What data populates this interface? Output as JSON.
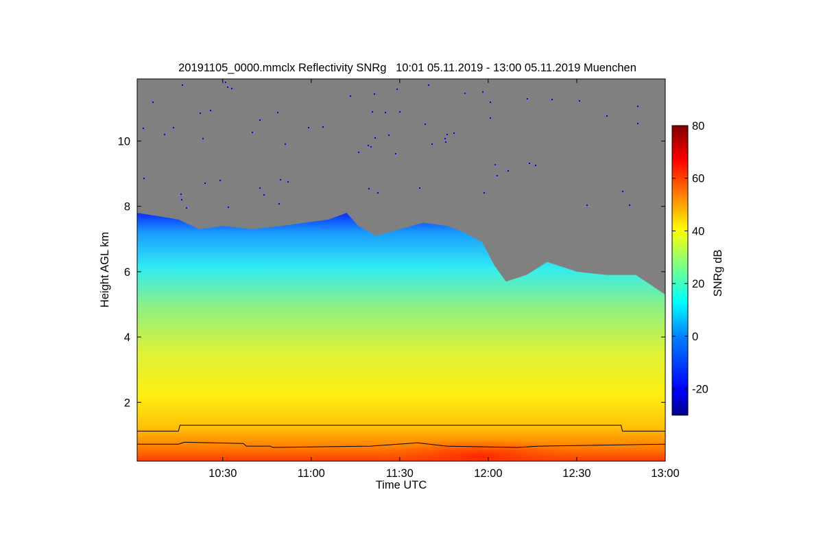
{
  "chart_data": {
    "type": "heatmap",
    "title": "20191105_0000.mmclx Reflectivity SNRg   10:01 05.11.2019 - 13:00 05.11.2019 Muenchen",
    "xlabel": "Time UTC",
    "ylabel": "Height AGL km",
    "x_ticks": [
      "10:30",
      "11:00",
      "11:30",
      "12:00",
      "12:30",
      "13:00"
    ],
    "x_tick_minutes": [
      30,
      60,
      90,
      120,
      150,
      180
    ],
    "xlim_minutes": [
      1,
      180
    ],
    "y_ticks": [
      "2",
      "4",
      "6",
      "8",
      "10"
    ],
    "y_tick_values": [
      2,
      4,
      6,
      8,
      10
    ],
    "ylim": [
      0.2,
      11.9
    ],
    "colorbar": {
      "label": "SNRg dB",
      "ticks": [
        "-20",
        "0",
        "20",
        "40",
        "60",
        "80"
      ],
      "tick_values": [
        -20,
        0,
        20,
        40,
        60,
        80
      ],
      "range": [
        -30,
        80
      ],
      "colors": [
        "#00008f",
        "#0000ff",
        "#0080ff",
        "#00ffff",
        "#80ff80",
        "#ffff00",
        "#ff8000",
        "#ff0000",
        "#800000"
      ]
    },
    "no_signal_color": "#808080",
    "cloud_top_km": [
      {
        "t": 1,
        "h": 7.8
      },
      {
        "t": 8,
        "h": 7.7
      },
      {
        "t": 15,
        "h": 7.6
      },
      {
        "t": 22,
        "h": 7.3
      },
      {
        "t": 30,
        "h": 7.4
      },
      {
        "t": 40,
        "h": 7.3
      },
      {
        "t": 50,
        "h": 7.4
      },
      {
        "t": 58,
        "h": 7.5
      },
      {
        "t": 66,
        "h": 7.6
      },
      {
        "t": 72,
        "h": 7.8
      },
      {
        "t": 76,
        "h": 7.4
      },
      {
        "t": 82,
        "h": 7.1
      },
      {
        "t": 90,
        "h": 7.3
      },
      {
        "t": 98,
        "h": 7.5
      },
      {
        "t": 106,
        "h": 7.4
      },
      {
        "t": 112,
        "h": 7.2
      },
      {
        "t": 118,
        "h": 6.9
      },
      {
        "t": 122,
        "h": 6.2
      },
      {
        "t": 126,
        "h": 5.7
      },
      {
        "t": 133,
        "h": 5.9
      },
      {
        "t": 140,
        "h": 6.3
      },
      {
        "t": 150,
        "h": 6.0
      },
      {
        "t": 160,
        "h": 5.9
      },
      {
        "t": 170,
        "h": 5.9
      },
      {
        "t": 175,
        "h": 5.6
      },
      {
        "t": 180,
        "h": 5.3
      }
    ],
    "upper_line_km": [
      {
        "t": 1,
        "h": 1.12
      },
      {
        "t": 15,
        "h": 1.12
      },
      {
        "t": 15.5,
        "h": 1.3
      },
      {
        "t": 165,
        "h": 1.3
      },
      {
        "t": 165.5,
        "h": 1.12
      },
      {
        "t": 180,
        "h": 1.12
      }
    ],
    "lower_line_km": [
      {
        "t": 1,
        "h": 0.72
      },
      {
        "t": 15,
        "h": 0.72
      },
      {
        "t": 17,
        "h": 0.78
      },
      {
        "t": 37,
        "h": 0.74
      },
      {
        "t": 38,
        "h": 0.66
      },
      {
        "t": 46,
        "h": 0.66
      },
      {
        "t": 47,
        "h": 0.62
      },
      {
        "t": 80,
        "h": 0.66
      },
      {
        "t": 96,
        "h": 0.76
      },
      {
        "t": 106,
        "h": 0.66
      },
      {
        "t": 130,
        "h": 0.62
      },
      {
        "t": 137,
        "h": 0.66
      },
      {
        "t": 180,
        "h": 0.72
      }
    ]
  }
}
